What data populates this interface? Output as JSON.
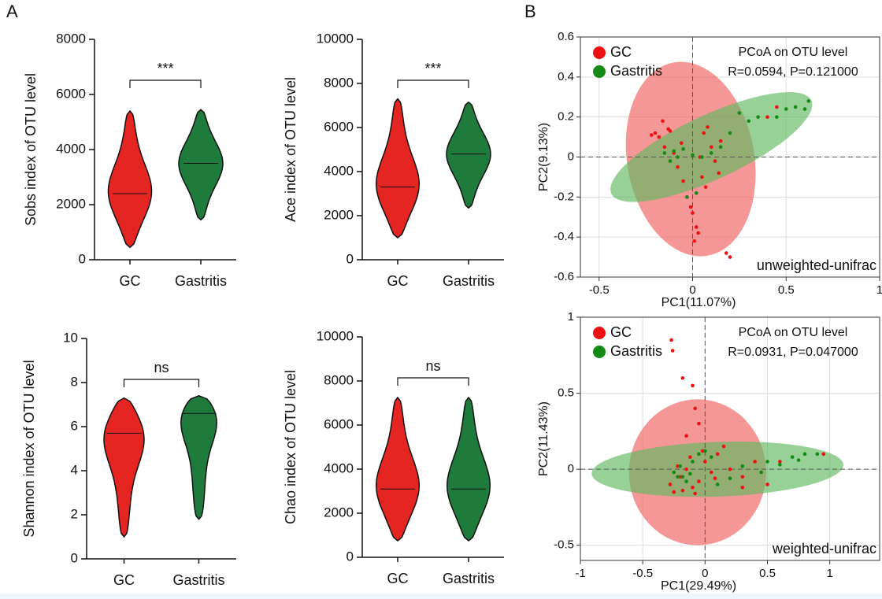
{
  "panel_labels": [
    "A",
    "B"
  ],
  "chart_data": [
    {
      "type": "violin",
      "ylabel": "Sobs index of OTU level",
      "categories": [
        "GC",
        "Gastritis"
      ],
      "colors": [
        "#e52521",
        "#1e7b3c"
      ],
      "values": [
        {
          "min": 450,
          "median": 2400,
          "max": 5400
        },
        {
          "min": 1450,
          "median": 3500,
          "max": 5450
        }
      ],
      "ylim": [
        0,
        8000
      ],
      "yticks": [
        0,
        2000,
        4000,
        6000,
        8000
      ],
      "annotation": "***",
      "annotation_color": "#e8453c"
    },
    {
      "type": "violin",
      "ylabel": "Ace index of OTU level",
      "categories": [
        "GC",
        "Gastritis"
      ],
      "colors": [
        "#e52521",
        "#1e7b3c"
      ],
      "values": [
        {
          "min": 1000,
          "median": 3300,
          "max": 7300
        },
        {
          "min": 2350,
          "median": 4800,
          "max": 7150
        }
      ],
      "ylim": [
        0,
        10000
      ],
      "yticks": [
        0,
        2000,
        4000,
        6000,
        8000,
        10000
      ],
      "annotation": "***",
      "annotation_color": "#e8453c"
    },
    {
      "type": "violin",
      "ylabel": "Shannon index of OTU level",
      "categories": [
        "GC",
        "Gastritis"
      ],
      "colors": [
        "#e52521",
        "#1e7b3c"
      ],
      "values": [
        {
          "min": 1.0,
          "median": 5.7,
          "max": 7.3
        },
        {
          "min": 1.8,
          "median": 6.6,
          "max": 7.4
        }
      ],
      "ylim": [
        0,
        10
      ],
      "yticks": [
        0,
        2,
        4,
        6,
        8,
        10
      ],
      "annotation": "ns",
      "annotation_color": "#111111"
    },
    {
      "type": "violin",
      "ylabel": "Chao index of OTU level",
      "categories": [
        "GC",
        "Gastritis"
      ],
      "colors": [
        "#e52521",
        "#1e7b3c"
      ],
      "values": [
        {
          "min": 750,
          "median": 3100,
          "max": 7250
        },
        {
          "min": 750,
          "median": 3100,
          "max": 7250
        }
      ],
      "ylim": [
        0,
        10000
      ],
      "yticks": [
        0,
        2000,
        4000,
        6000,
        8000,
        10000
      ],
      "annotation": "ns",
      "annotation_color": "#111111"
    },
    {
      "type": "scatter",
      "title": "PCoA on OTU level",
      "subtitle": "R=0.0594, P=0.121000",
      "annotation": "unweighted-unifrac",
      "xlabel": "PC1(11.07%)",
      "ylabel": "PC2(9.13%)",
      "grid": true,
      "zero_lines": true,
      "legend": "upper left",
      "xlim": [
        -0.6,
        1
      ],
      "xticks": [
        -0.5,
        0,
        0.5,
        1
      ],
      "ylim": [
        -0.6,
        0.6
      ],
      "yticks": [
        -0.6,
        -0.4,
        -0.2,
        0,
        0.2,
        0.4,
        0.6
      ],
      "series": [
        {
          "name": "GC",
          "color": "#ee1111",
          "ellipse_color": "#f06060",
          "ellipse": {
            "center": [
              -0.01,
              -0.01
            ],
            "radii": [
              0.34,
              0.49
            ],
            "angle": -10
          },
          "x": [
            -0.2,
            -0.18,
            -0.15,
            -0.12,
            -0.1,
            -0.08,
            -0.05,
            -0.03,
            0,
            0.02,
            0.05,
            0.08,
            0.1,
            0.12,
            0.15,
            -0.22,
            -0.16,
            -0.06,
            0.03,
            0.07,
            -0.01,
            0.01,
            0.04,
            0.18,
            0.2,
            -0.13,
            0.06,
            0.14,
            0.4,
            0.45
          ],
          "y": [
            0.12,
            0.1,
            0.05,
            0.13,
            0.02,
            -0.05,
            -0.12,
            -0.2,
            -0.28,
            -0.35,
            -0.1,
            0.15,
            0.05,
            -0.02,
            0.08,
            0.11,
            0.18,
            0.07,
            -0.38,
            -0.15,
            -0.25,
            -0.42,
            0.0,
            -0.48,
            -0.5,
            0.14,
            0.12,
            -0.08,
            0.2,
            0.25
          ]
        },
        {
          "name": "Gastritis",
          "color": "#138a13",
          "ellipse_color": "#5fb85f",
          "ellipse": {
            "center": [
              0.1,
              0.05
            ],
            "radii": [
              0.59,
              0.16
            ],
            "angle": -25
          },
          "x": [
            -0.15,
            -0.1,
            -0.08,
            -0.05,
            0,
            0.05,
            0.1,
            0.2,
            0.3,
            0.35,
            0.5,
            0.55,
            0.6,
            0.62,
            -0.12,
            0.15,
            0.02,
            -0.03,
            0.25,
            0.45
          ],
          "y": [
            0.02,
            0.03,
            0,
            0.04,
            0.01,
            0,
            0.02,
            0.12,
            0.18,
            0.2,
            0.24,
            0.25,
            0.24,
            0.28,
            -0.02,
            0.05,
            -0.18,
            -0.2,
            0.22,
            0.2
          ]
        }
      ]
    },
    {
      "type": "scatter",
      "title": "PCoA on OTU level",
      "subtitle": "R=0.0931, P=0.047000",
      "annotation": "weighted-unifrac",
      "xlabel": "PC1(29.49%)",
      "ylabel": "PC2(11.43%)",
      "grid": true,
      "zero_lines": true,
      "legend": "upper left",
      "xlim": [
        -1,
        1.4
      ],
      "xticks": [
        -1,
        -0.5,
        0,
        0.5,
        1
      ],
      "ylim": [
        -0.6,
        1
      ],
      "yticks": [
        -0.5,
        0,
        0.5,
        1
      ],
      "series": [
        {
          "name": "GC",
          "color": "#ee1111",
          "ellipse_color": "#f06060",
          "ellipse": {
            "center": [
              -0.06,
              -0.02
            ],
            "radii": [
              0.55,
              0.48
            ],
            "angle": 0
          },
          "x": [
            -0.28,
            -0.25,
            -0.2,
            -0.15,
            -0.1,
            -0.05,
            0,
            0.05,
            0.1,
            0.2,
            0.3,
            0.4,
            0.5,
            -0.22,
            -0.18,
            -0.12,
            -0.08,
            -0.02,
            0.08,
            0.15,
            -0.27,
            -0.26,
            -0.18,
            -0.1,
            -0.08,
            0.95,
            0.6,
            0.3,
            -0.05,
            -0.15
          ],
          "y": [
            -0.1,
            -0.15,
            -0.05,
            0,
            -0.12,
            -0.08,
            0.05,
            -0.02,
            0.1,
            0,
            -0.05,
            0.05,
            -0.1,
            0.02,
            -0.14,
            0.08,
            -0.16,
            0.12,
            -0.06,
            0.15,
            0.85,
            0.78,
            0.6,
            0.55,
            0.4,
            0.1,
            0.05,
            -0.12,
            0.3,
            0.22
          ]
        },
        {
          "name": "Gastritis",
          "color": "#138a13",
          "ellipse_color": "#5fb85f",
          "ellipse": {
            "center": [
              0.1,
              0
            ],
            "radii": [
              1.01,
              0.18
            ],
            "angle": -2
          },
          "x": [
            -0.25,
            -0.2,
            -0.18,
            -0.15,
            -0.1,
            -0.05,
            0,
            0.1,
            0.3,
            0.5,
            0.6,
            0.7,
            0.75,
            0.8,
            0.9,
            -0.22,
            -0.12,
            0.05,
            0.2,
            0.45
          ],
          "y": [
            -0.02,
            0.02,
            -0.05,
            -0.08,
            0.05,
            0.1,
            0.12,
            -0.1,
            0.02,
            0.05,
            0.03,
            0.08,
            0.06,
            0.1,
            0.1,
            -0.05,
            -0.03,
            0.08,
            -0.06,
            -0.02
          ]
        }
      ]
    }
  ]
}
